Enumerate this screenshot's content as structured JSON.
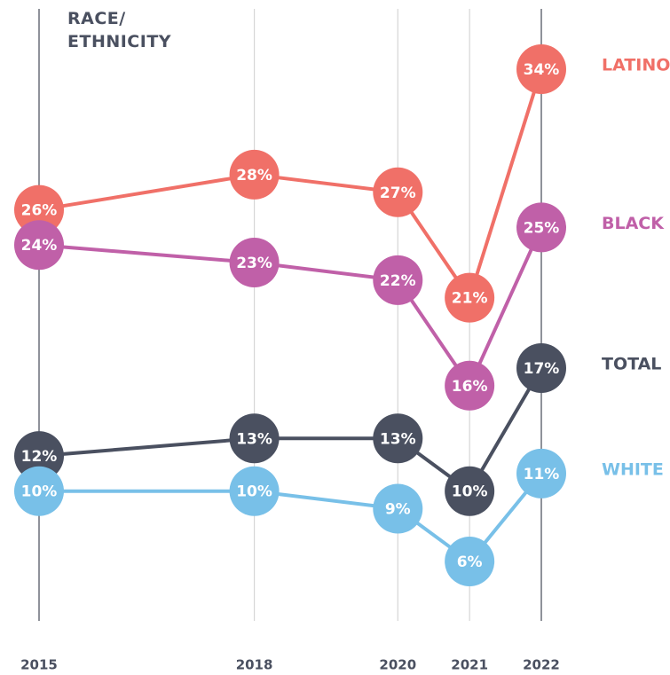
{
  "chart_data": {
    "type": "line",
    "title": "RACE/ ETHNICITY",
    "x": [
      2015,
      2018,
      2020,
      2021,
      2022
    ],
    "series": [
      {
        "name": "LATINO",
        "color": "#f07068",
        "values": [
          26,
          28,
          27,
          21,
          34
        ],
        "value_labels": [
          "26%",
          "28%",
          "27%",
          "21%",
          "34%"
        ]
      },
      {
        "name": "BLACK",
        "color": "#c060a8",
        "values": [
          24,
          23,
          22,
          16,
          25
        ],
        "value_labels": [
          "24%",
          "23%",
          "22%",
          "16%",
          "25%"
        ]
      },
      {
        "name": "TOTAL",
        "color": "#4a5060",
        "values": [
          12,
          13,
          13,
          10,
          17
        ],
        "value_labels": [
          "12%",
          "13%",
          "13%",
          "10%",
          "17%"
        ]
      },
      {
        "name": "WHITE",
        "color": "#78c0e8",
        "values": [
          10,
          10,
          9,
          6,
          11
        ],
        "value_labels": [
          "10%",
          "10%",
          "9%",
          "6%",
          "11%"
        ]
      }
    ]
  }
}
